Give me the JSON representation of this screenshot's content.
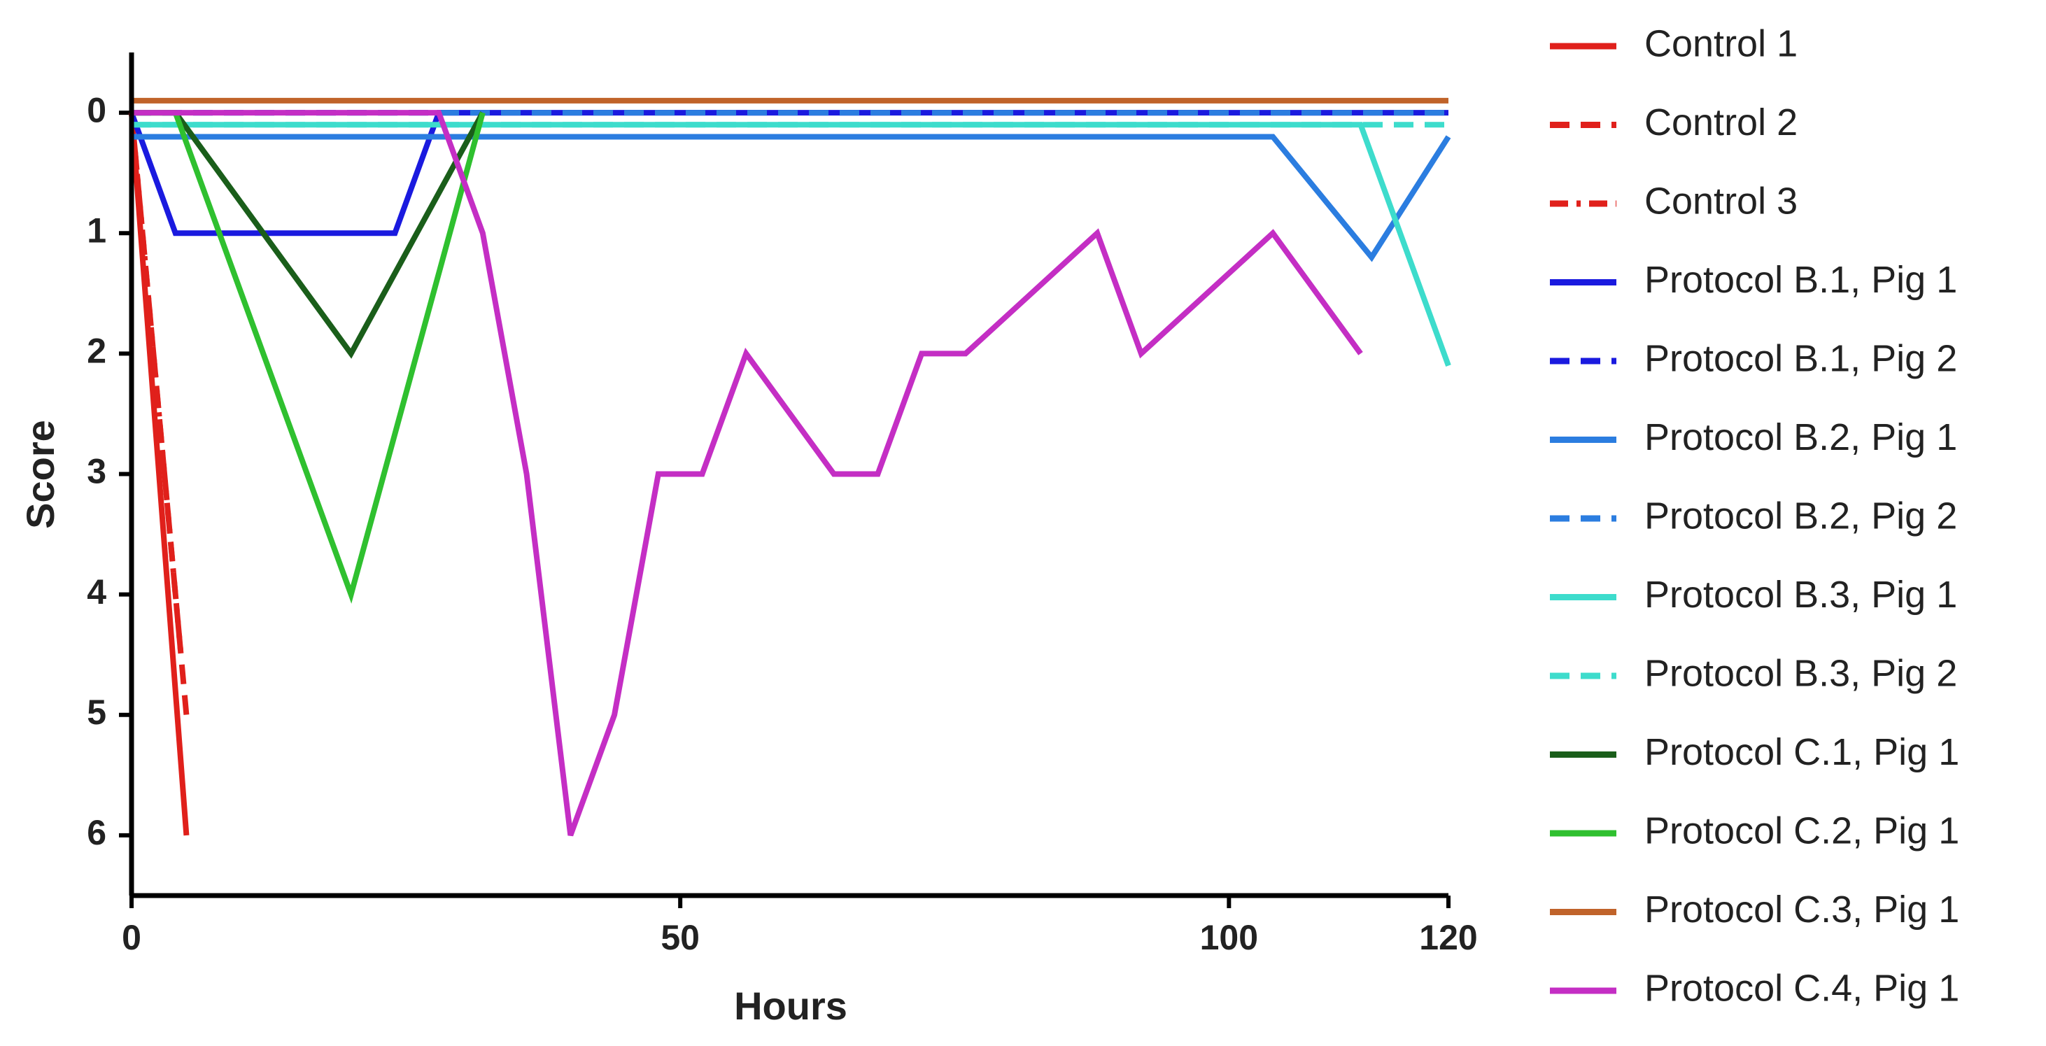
{
  "chart_data": {
    "type": "line",
    "xlabel": "Hours",
    "ylabel": "Score",
    "xlim": [
      0,
      120
    ],
    "xticks": [
      0,
      50,
      100,
      120
    ],
    "ylim": [
      -0.5,
      6.5
    ],
    "yticks": [
      0,
      1,
      2,
      3,
      4,
      5,
      6
    ],
    "y_inverted": true,
    "legend": "right",
    "series": [
      {
        "name": "Control 1",
        "color": "#e0201b",
        "dash": "solid",
        "x": [
          0,
          5
        ],
        "values": [
          0,
          6
        ]
      },
      {
        "name": "Control 2",
        "color": "#e0201b",
        "dash": "dashed",
        "x": [
          0,
          5
        ],
        "values": [
          0,
          5
        ]
      },
      {
        "name": "Control  3",
        "color": "#e0201b",
        "dash": "dashdot",
        "x": [
          0,
          4.5
        ],
        "values": [
          0,
          4.5
        ]
      },
      {
        "name": "Protocol B.1, Pig 1",
        "color": "#1a1adf",
        "dash": "solid",
        "x": [
          0,
          4,
          24,
          28,
          120
        ],
        "values": [
          0,
          1,
          1,
          0,
          0
        ]
      },
      {
        "name": "Protocol B.1, Pig 2",
        "color": "#1a1adf",
        "dash": "dashed",
        "x": [
          0,
          120
        ],
        "values": [
          0,
          0
        ]
      },
      {
        "name": "Protocol B.2, Pig 1",
        "color": "#2b7de0",
        "dash": "solid",
        "x": [
          0,
          104,
          113,
          120
        ],
        "values": [
          0.2,
          0.2,
          1.2,
          0.2
        ]
      },
      {
        "name": "Protocol B.2, Pig 2",
        "color": "#2b7de0",
        "dash": "dashed",
        "x": [
          0,
          120
        ],
        "values": [
          0,
          0
        ]
      },
      {
        "name": "Protocol B.3, Pig 1",
        "color": "#3ddccc",
        "dash": "solid",
        "x": [
          0,
          112,
          120
        ],
        "values": [
          0.1,
          0.1,
          2.1
        ]
      },
      {
        "name": "Protocol B.3, Pig 2",
        "color": "#3ddccc",
        "dash": "dashed",
        "x": [
          0,
          120
        ],
        "values": [
          0.1,
          0.1
        ]
      },
      {
        "name": "Protocol C.1, Pig 1",
        "color": "#1a5e1a",
        "dash": "solid",
        "x": [
          0,
          4,
          20,
          32
        ],
        "values": [
          0,
          0,
          2,
          0
        ]
      },
      {
        "name": "Protocol C.2, Pig 1",
        "color": "#2fc02f",
        "dash": "solid",
        "x": [
          0,
          4,
          20,
          32
        ],
        "values": [
          0,
          0,
          4,
          0
        ]
      },
      {
        "name": "Protocol C.3, Pig 1",
        "color": "#c0632a",
        "dash": "solid",
        "x": [
          0,
          120
        ],
        "values": [
          -0.1,
          -0.1
        ]
      },
      {
        "name": "Protocol C.4, Pig 1",
        "color": "#c42ec4",
        "dash": "solid",
        "x": [
          0,
          28,
          32,
          36,
          40,
          44,
          48,
          52,
          56,
          64,
          68,
          72,
          76,
          88,
          92,
          104,
          112
        ],
        "values": [
          0,
          0,
          1,
          3,
          6,
          5,
          3,
          3,
          2,
          3,
          3,
          2,
          2,
          1,
          2,
          1,
          2
        ]
      }
    ]
  }
}
